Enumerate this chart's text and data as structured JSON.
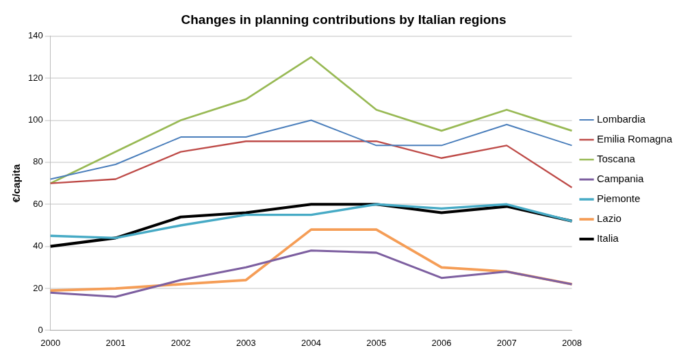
{
  "chart_data": {
    "type": "line",
    "title": "Changes in planning contributions by Italian regions",
    "ylabel": "€/capita",
    "categories": [
      "2000",
      "2001",
      "2002",
      "2003",
      "2004",
      "2005",
      "2006",
      "2007",
      "2008"
    ],
    "series": [
      {
        "name": "Lombardia",
        "color": "#4a7ebb",
        "values": [
          72,
          79,
          92,
          92,
          100,
          88,
          88,
          98,
          88
        ]
      },
      {
        "name": "Emilia Romagna",
        "color": "#be4b48",
        "values": [
          70,
          72,
          85,
          90,
          90,
          90,
          82,
          88,
          68
        ]
      },
      {
        "name": "Toscana",
        "color": "#98b954",
        "values": [
          70,
          85,
          100,
          110,
          130,
          105,
          95,
          105,
          95
        ]
      },
      {
        "name": "Campania",
        "color": "#7d5fa0",
        "values": [
          18,
          16,
          24,
          30,
          38,
          37,
          25,
          28,
          22
        ]
      },
      {
        "name": "Piemonte",
        "color": "#46aac5",
        "values": [
          45,
          44,
          50,
          55,
          55,
          60,
          58,
          60,
          52
        ]
      },
      {
        "name": "Lazio",
        "color": "#f59d56",
        "values": [
          19,
          20,
          22,
          24,
          48,
          48,
          30,
          28,
          22
        ]
      },
      {
        "name": "Italia",
        "color": "#000000",
        "values": [
          40,
          44,
          54,
          56,
          60,
          60,
          56,
          59,
          52
        ]
      }
    ],
    "ylim": [
      0,
      140
    ],
    "yticks": [
      0,
      20,
      40,
      60,
      80,
      100,
      120,
      140
    ],
    "grid": "y",
    "legend": "right",
    "marker": "none",
    "line_style": "solid"
  }
}
